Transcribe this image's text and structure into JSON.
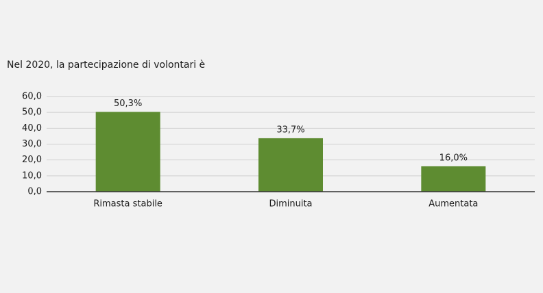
{
  "chart_data": {
    "type": "bar",
    "title": "Nel 2020, la partecipazione di volontari è",
    "categories": [
      "Rimasta stabile",
      "Diminuita",
      "Aumentata"
    ],
    "values": [
      50.3,
      33.7,
      16.0
    ],
    "value_labels": [
      "50,3%",
      "33,7%",
      "16,0%"
    ],
    "color": "#5e8c31",
    "ylim": [
      0,
      60
    ],
    "yticks": [
      {
        "value": 0,
        "label": "0,0"
      },
      {
        "value": 10,
        "label": "10,0"
      },
      {
        "value": 20,
        "label": "20,0"
      },
      {
        "value": 30,
        "label": "30,0"
      },
      {
        "value": 40,
        "label": "40,0"
      },
      {
        "value": 50,
        "label": "50,0"
      },
      {
        "value": 60,
        "label": "60,0"
      }
    ],
    "grid": true
  }
}
